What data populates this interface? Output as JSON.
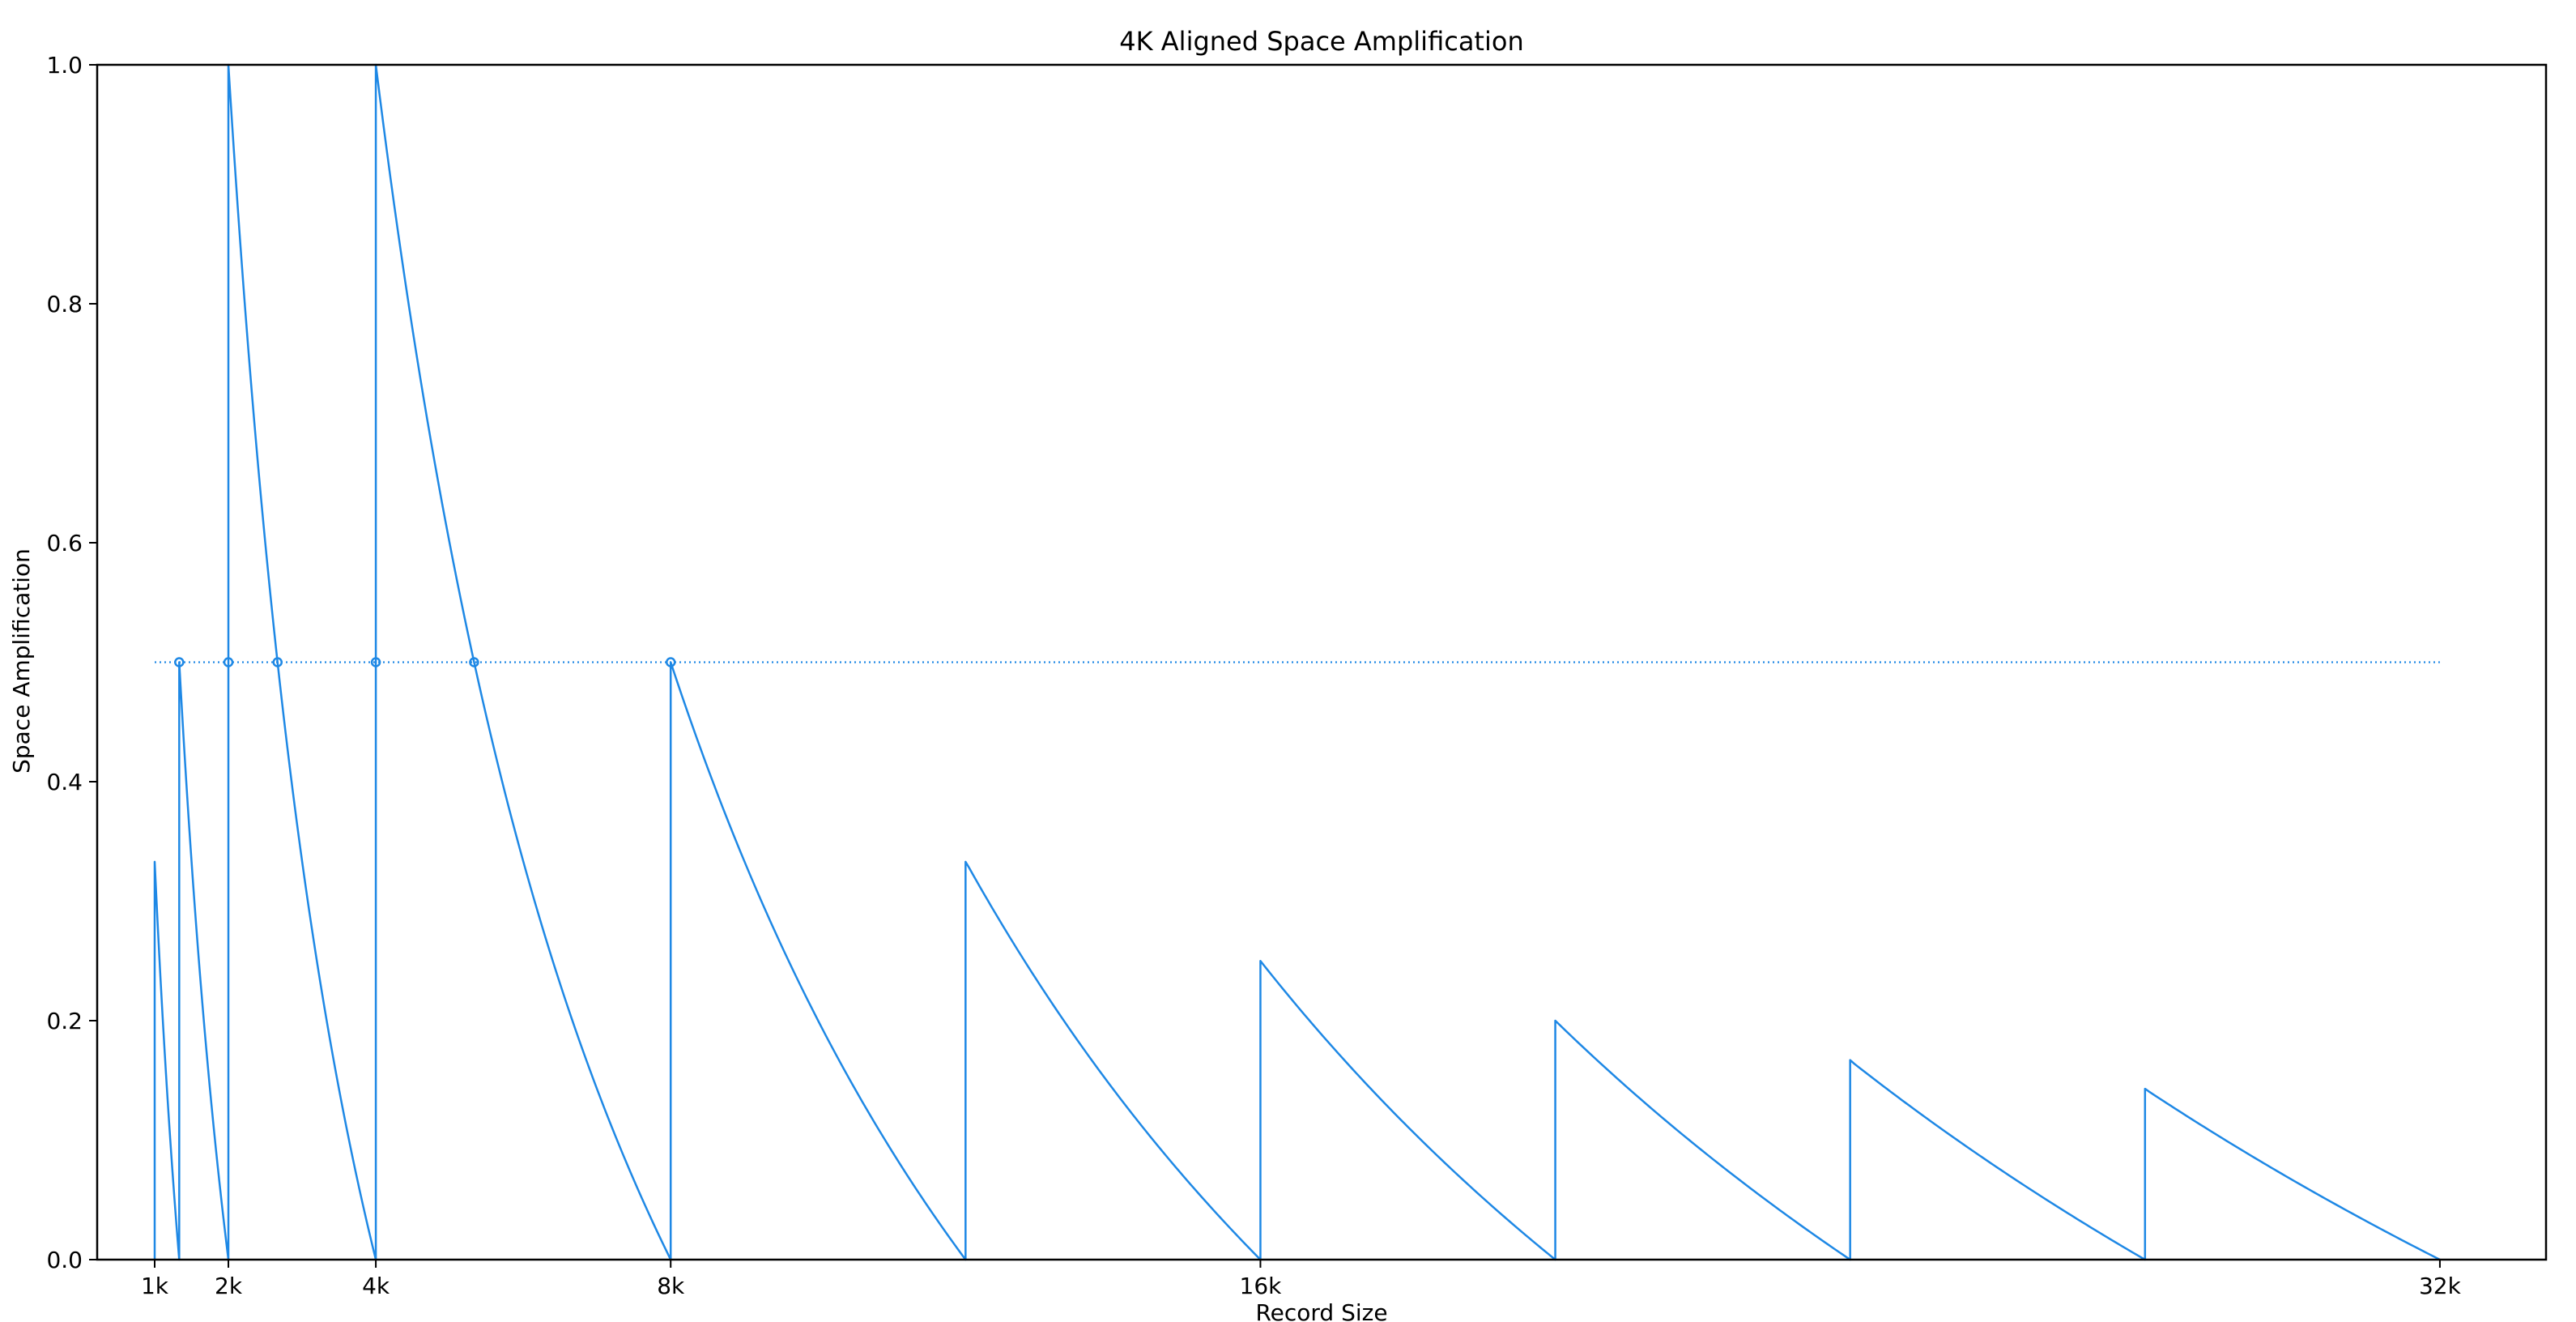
{
  "chart_data": {
    "type": "line",
    "title": "4K Aligned Space Amplification",
    "xlabel": "Record Size",
    "ylabel": "Space Amplification",
    "xlim": [
      0.22,
      33.44
    ],
    "ylim": [
      0,
      1.0
    ],
    "xticks": [
      {
        "value": 1,
        "label": "1k"
      },
      {
        "value": 2,
        "label": "2k"
      },
      {
        "value": 4,
        "label": "4k"
      },
      {
        "value": 8,
        "label": "8k"
      },
      {
        "value": 16,
        "label": "16k"
      },
      {
        "value": 32,
        "label": "32k"
      }
    ],
    "yticks": [
      {
        "value": 0.0,
        "label": "0.0"
      },
      {
        "value": 0.2,
        "label": "0.2"
      },
      {
        "value": 0.4,
        "label": "0.4"
      },
      {
        "value": 0.6,
        "label": "0.6"
      },
      {
        "value": 0.8,
        "label": "0.8"
      },
      {
        "value": 1.0,
        "label": "1.0"
      }
    ],
    "grid": false,
    "legend": "none",
    "color": "#1e88e5",
    "series": [
      {
        "style": "solid",
        "segments": [
          {
            "x0": 1.0,
            "x1": 1.333,
            "y_at_x0": 0.333,
            "formula": "ceil(x/block)*block/x - 1",
            "block": 1.333
          },
          {
            "x0": 1.333,
            "x1": 2.0,
            "y_at_x0": 0.5,
            "formula": "ceil(x/block)*block/x - 1",
            "block": 2.0
          },
          {
            "x0": 2.0,
            "x1": 4.0,
            "y_at_x0": 1.0,
            "formula": "ceil(x/block)*block/x - 1",
            "block": 4.0
          },
          {
            "x0": 4.0,
            "x1": 8.0,
            "y_at_x0": 1.0,
            "formula": "ceil(x/block)*block/x - 1",
            "block": 8.0
          },
          {
            "x0": 8.0,
            "x1": 12.0,
            "y_at_x0": 0.5,
            "formula": "ceil(x/4)*4/x - 1",
            "block": 4.0
          },
          {
            "x0": 12.0,
            "x1": 16.0,
            "y_at_x0": 0.333,
            "formula": "ceil(x/4)*4/x - 1",
            "block": 4.0
          },
          {
            "x0": 16.0,
            "x1": 20.0,
            "y_at_x0": 0.25,
            "formula": "ceil(x/4)*4/x - 1",
            "block": 4.0
          },
          {
            "x0": 20.0,
            "x1": 24.0,
            "y_at_x0": 0.2,
            "formula": "ceil(x/4)*4/x - 1",
            "block": 4.0
          },
          {
            "x0": 24.0,
            "x1": 28.0,
            "y_at_x0": 0.167,
            "formula": "ceil(x/4)*4/x - 1",
            "block": 4.0
          },
          {
            "x0": 28.0,
            "x1": 32.0,
            "y_at_x0": 0.143,
            "formula": "ceil(x/4)*4/x - 1",
            "block": 4.0
          }
        ]
      },
      {
        "style": "dotted",
        "x": [
          1.0,
          32.0
        ],
        "y": [
          0.5,
          0.5
        ]
      }
    ],
    "markers": {
      "x": [
        1.333,
        2.0,
        2.667,
        4.0,
        5.333,
        8.0
      ],
      "y": [
        0.5,
        0.5,
        0.5,
        0.5,
        0.5,
        0.5
      ]
    }
  }
}
